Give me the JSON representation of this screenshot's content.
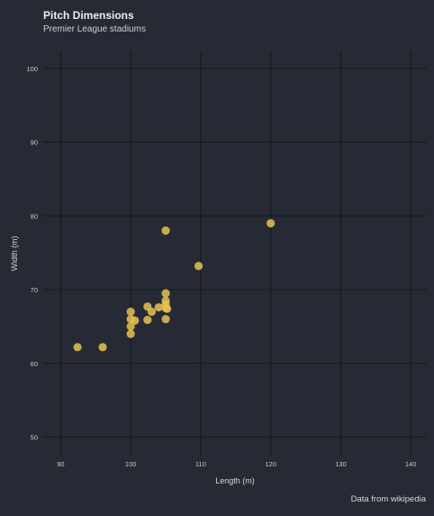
{
  "chart_data": {
    "type": "scatter",
    "title": "Pitch Dimensions",
    "subtitle": "Premier League stadiums",
    "caption": "Data from wikipedia",
    "xlabel": "Length (m)",
    "ylabel": "Width (m)",
    "xlim": [
      87.5,
      142.3
    ],
    "ylim": [
      47.5,
      102.3
    ],
    "xticks": [
      90,
      100,
      110,
      120,
      130,
      140
    ],
    "yticks": [
      50,
      60,
      70,
      80,
      90,
      100
    ],
    "grid": true,
    "point_color": "#e8c252",
    "background": "#252a34",
    "points": [
      {
        "x": 92.4,
        "y": 62.2
      },
      {
        "x": 96.0,
        "y": 62.2
      },
      {
        "x": 100.0,
        "y": 64.0
      },
      {
        "x": 100.0,
        "y": 65.0
      },
      {
        "x": 100.0,
        "y": 66.0
      },
      {
        "x": 100.0,
        "y": 67.0
      },
      {
        "x": 100.6,
        "y": 65.8
      },
      {
        "x": 102.4,
        "y": 65.9
      },
      {
        "x": 102.4,
        "y": 67.7
      },
      {
        "x": 103.0,
        "y": 67.0
      },
      {
        "x": 104.0,
        "y": 67.6
      },
      {
        "x": 105.0,
        "y": 66.0
      },
      {
        "x": 105.0,
        "y": 67.5
      },
      {
        "x": 105.0,
        "y": 68.0
      },
      {
        "x": 105.0,
        "y": 68.5
      },
      {
        "x": 105.0,
        "y": 69.5
      },
      {
        "x": 105.2,
        "y": 67.4
      },
      {
        "x": 105.0,
        "y": 78.0
      },
      {
        "x": 109.7,
        "y": 73.2
      },
      {
        "x": 120.0,
        "y": 79.0
      }
    ]
  }
}
